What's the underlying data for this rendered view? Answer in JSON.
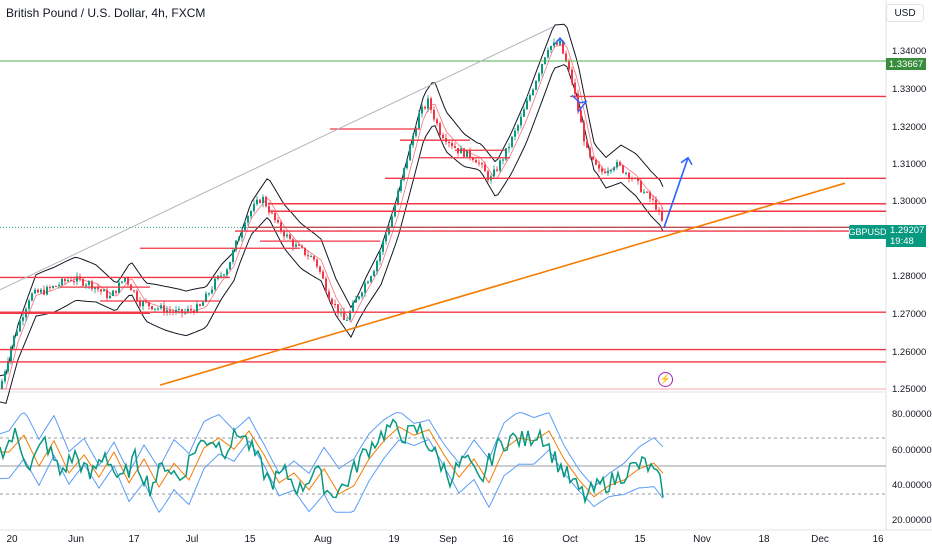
{
  "header": {
    "title": "British Pound / U.S. Dollar, 4h, FXCM",
    "currency": "USD"
  },
  "price_axis": {
    "ticks": [
      "1.34000",
      "1.33000",
      "1.32000",
      "1.31000",
      "1.30000",
      "1.28000",
      "1.27000",
      "1.26000",
      "1.25000"
    ],
    "highlight_level": "1.33667",
    "highlight_color": "#4caf50",
    "symbol_tag": "GBPUSD",
    "last_price": "1.29207",
    "countdown": "19:48",
    "last_color": "#089981"
  },
  "rsi_axis": {
    "ticks": [
      "80.00000",
      "60.00000",
      "40.00000",
      "20.00000"
    ]
  },
  "time_axis": {
    "ticks": [
      "20",
      "Jun",
      "17",
      "Jul",
      "15",
      "Aug",
      "19",
      "Sep",
      "16",
      "Oct",
      "15",
      "Nov",
      "18",
      "Dec",
      "16"
    ]
  },
  "icons": {
    "flash": "lightning-icon"
  },
  "chart_data": {
    "type": "candlestick",
    "symbol": "GBPUSD",
    "timeframe": "4h",
    "ylim": [
      1.2487,
      1.3463
    ],
    "resistance_lines": [
      1.3272,
      1.3053,
      1.2985,
      1.2965,
      1.2922,
      1.2912,
      1.2695,
      1.2595,
      1.2562
    ],
    "close_path": [
      [
        0,
        1.249
      ],
      [
        12,
        1.2615
      ],
      [
        30,
        1.274
      ],
      [
        48,
        1.2755
      ],
      [
        70,
        1.2785
      ],
      [
        90,
        1.2772
      ],
      [
        110,
        1.2735
      ],
      [
        125,
        1.2788
      ],
      [
        140,
        1.2722
      ],
      [
        160,
        1.2705
      ],
      [
        180,
        1.2692
      ],
      [
        200,
        1.2708
      ],
      [
        215,
        1.2775
      ],
      [
        228,
        1.2818
      ],
      [
        245,
        1.2945
      ],
      [
        262,
        1.3003
      ],
      [
        278,
        1.2925
      ],
      [
        295,
        1.2872
      ],
      [
        315,
        1.2835
      ],
      [
        330,
        1.2735
      ],
      [
        345,
        1.2668
      ],
      [
        360,
        1.2748
      ],
      [
        375,
        1.2818
      ],
      [
        392,
        1.2952
      ],
      [
        405,
        1.3085
      ],
      [
        418,
        1.3218
      ],
      [
        428,
        1.3258
      ],
      [
        440,
        1.3178
      ],
      [
        458,
        1.3128
      ],
      [
        475,
        1.3108
      ],
      [
        490,
        1.3048
      ],
      [
        505,
        1.3118
      ],
      [
        520,
        1.3205
      ],
      [
        535,
        1.3312
      ],
      [
        548,
        1.3405
      ],
      [
        560,
        1.3412
      ],
      [
        572,
        1.3312
      ],
      [
        582,
        1.3185
      ],
      [
        588,
        1.3112
      ],
      [
        600,
        1.3068
      ],
      [
        615,
        1.3092
      ],
      [
        630,
        1.3062
      ],
      [
        645,
        1.3012
      ],
      [
        655,
        1.2985
      ],
      [
        664,
        1.2921
      ]
    ],
    "rsi": {
      "levels": [
        70,
        50,
        30
      ],
      "ylim": [
        15,
        90
      ],
      "series": [
        [
          0,
          60
        ],
        [
          15,
          72
        ],
        [
          30,
          50
        ],
        [
          45,
          68
        ],
        [
          60,
          45
        ],
        [
          75,
          58
        ],
        [
          90,
          42
        ],
        [
          105,
          60
        ],
        [
          120,
          38
        ],
        [
          135,
          55
        ],
        [
          150,
          35
        ],
        [
          165,
          52
        ],
        [
          180,
          40
        ],
        [
          195,
          63
        ],
        [
          210,
          70
        ],
        [
          225,
          62
        ],
        [
          240,
          75
        ],
        [
          255,
          58
        ],
        [
          270,
          38
        ],
        [
          285,
          45
        ],
        [
          300,
          33
        ],
        [
          315,
          48
        ],
        [
          330,
          30
        ],
        [
          345,
          36
        ],
        [
          360,
          55
        ],
        [
          375,
          68
        ],
        [
          390,
          78
        ],
        [
          405,
          72
        ],
        [
          420,
          76
        ],
        [
          435,
          58
        ],
        [
          450,
          42
        ],
        [
          465,
          55
        ],
        [
          480,
          38
        ],
        [
          495,
          62
        ],
        [
          510,
          70
        ],
        [
          525,
          68
        ],
        [
          540,
          75
        ],
        [
          555,
          55
        ],
        [
          570,
          40
        ],
        [
          585,
          28
        ],
        [
          600,
          36
        ],
        [
          615,
          40
        ],
        [
          630,
          48
        ],
        [
          645,
          52
        ],
        [
          655,
          44
        ],
        [
          664,
          32
        ]
      ]
    },
    "projection": {
      "from": [
        664,
        1.2921
      ],
      "to": [
        688,
        1.3108
      ]
    },
    "rally_arrow": {
      "at": 560,
      "level": 1.3428
    }
  }
}
